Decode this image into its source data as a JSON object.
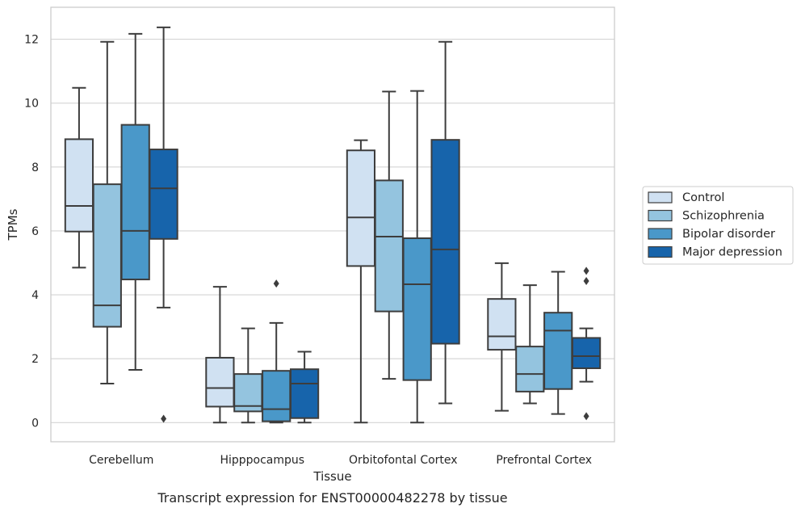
{
  "chart_data": {
    "type": "boxplot",
    "caption": "Transcript expression for ENST00000482278 by tissue",
    "xlabel": "Tissue",
    "ylabel": "TPMs",
    "ylim": [
      -0.6,
      13.0
    ],
    "yticks": [
      0,
      2,
      4,
      6,
      8,
      10,
      12
    ],
    "grid": true,
    "legend_position": "right",
    "categories": [
      "Cerebellum",
      "Hipppocampus",
      "Orbitofontal Cortex",
      "Prefrontal Cortex"
    ],
    "series": [
      {
        "name": "Control",
        "color": "#d0e1f2",
        "boxes": [
          {
            "whislo": 4.85,
            "q1": 5.98,
            "med": 6.78,
            "q3": 8.87,
            "whishi": 10.48,
            "fliers": []
          },
          {
            "whislo": 0.0,
            "q1": 0.5,
            "med": 1.08,
            "q3": 2.03,
            "whishi": 4.25,
            "fliers": []
          },
          {
            "whislo": 0.0,
            "q1": 4.9,
            "med": 6.42,
            "q3": 8.52,
            "whishi": 8.84,
            "fliers": []
          },
          {
            "whislo": 0.37,
            "q1": 2.28,
            "med": 2.7,
            "q3": 3.87,
            "whishi": 4.99,
            "fliers": []
          }
        ]
      },
      {
        "name": "Schizophrenia",
        "color": "#94c4df",
        "boxes": [
          {
            "whislo": 1.22,
            "q1": 3.0,
            "med": 3.67,
            "q3": 7.46,
            "whishi": 11.92,
            "fliers": []
          },
          {
            "whislo": 0.0,
            "q1": 0.35,
            "med": 0.52,
            "q3": 1.52,
            "whishi": 2.95,
            "fliers": []
          },
          {
            "whislo": 1.37,
            "q1": 3.48,
            "med": 5.82,
            "q3": 7.58,
            "whishi": 10.36,
            "fliers": []
          },
          {
            "whislo": 0.6,
            "q1": 0.97,
            "med": 1.52,
            "q3": 2.38,
            "whishi": 4.3,
            "fliers": []
          }
        ]
      },
      {
        "name": "Bipolar disorder",
        "color": "#4a98c9",
        "boxes": [
          {
            "whislo": 1.65,
            "q1": 4.48,
            "med": 6.0,
            "q3": 9.32,
            "whishi": 12.17,
            "fliers": []
          },
          {
            "whislo": 0.0,
            "q1": 0.04,
            "med": 0.42,
            "q3": 1.62,
            "whishi": 3.12,
            "fliers": [
              4.35
            ]
          },
          {
            "whislo": 0.0,
            "q1": 1.33,
            "med": 4.33,
            "q3": 5.77,
            "whishi": 10.38,
            "fliers": []
          },
          {
            "whislo": 0.27,
            "q1": 1.05,
            "med": 2.88,
            "q3": 3.44,
            "whishi": 4.72,
            "fliers": []
          }
        ]
      },
      {
        "name": "Major depression",
        "color": "#1764ab",
        "boxes": [
          {
            "whislo": 3.6,
            "q1": 5.75,
            "med": 7.33,
            "q3": 8.55,
            "whishi": 12.37,
            "fliers": [
              0.12
            ]
          },
          {
            "whislo": 0.0,
            "q1": 0.14,
            "med": 1.22,
            "q3": 1.67,
            "whishi": 2.22,
            "fliers": []
          },
          {
            "whislo": 0.6,
            "q1": 2.47,
            "med": 5.42,
            "q3": 8.85,
            "whishi": 11.92,
            "fliers": []
          },
          {
            "whislo": 1.28,
            "q1": 1.7,
            "med": 2.08,
            "q3": 2.65,
            "whishi": 2.95,
            "fliers": [
              0.2,
              4.43,
              4.75
            ]
          }
        ]
      }
    ]
  }
}
